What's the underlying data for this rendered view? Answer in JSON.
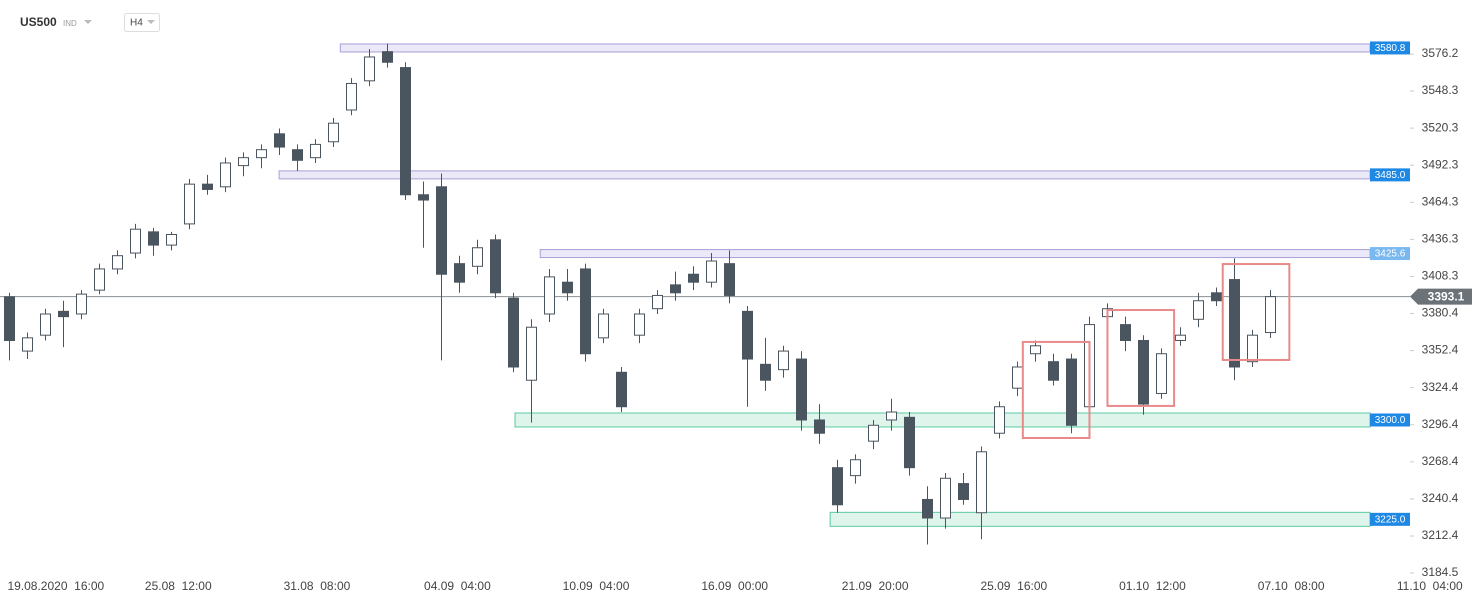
{
  "header": {
    "symbol": "US500",
    "market": "IND",
    "interval": "H4"
  },
  "chart_data": {
    "type": "candlestick",
    "open": [
      3393,
      3352,
      3364,
      3382,
      3380,
      3398,
      3414,
      3426,
      3442,
      3432,
      3448,
      3478,
      3476,
      3492,
      3498,
      3516,
      3504,
      3498,
      3510,
      3534,
      3556,
      3578,
      3566,
      3470,
      3476,
      3418,
      3416,
      3436,
      3392,
      3330,
      3380,
      3404,
      3414,
      3362,
      3336,
      3364,
      3384,
      3402,
      3410,
      3404,
      3418,
      3382,
      3342,
      3338,
      3346,
      3300,
      3264,
      3258,
      3284,
      3300,
      3302,
      3240,
      3226,
      3252,
      3230,
      3290,
      3324,
      3350,
      3344,
      3346,
      3310,
      3378,
      3372,
      3360,
      3320,
      3360,
      3376,
      3396,
      3406,
      3344,
      3366
    ],
    "high": [
      3396,
      3366,
      3384,
      3390,
      3398,
      3418,
      3428,
      3448,
      3445,
      3442,
      3482,
      3485,
      3498,
      3502,
      3508,
      3520,
      3508,
      3512,
      3528,
      3558,
      3580,
      3584,
      3570,
      3480,
      3486,
      3424,
      3436,
      3440,
      3396,
      3376,
      3414,
      3414,
      3418,
      3384,
      3340,
      3384,
      3398,
      3412,
      3416,
      3426,
      3428,
      3386,
      3362,
      3356,
      3352,
      3312,
      3270,
      3274,
      3300,
      3316,
      3306,
      3250,
      3260,
      3260,
      3280,
      3314,
      3344,
      3360,
      3350,
      3350,
      3378,
      3388,
      3378,
      3364,
      3354,
      3370,
      3396,
      3400,
      3422,
      3368,
      3398
    ],
    "low": [
      3345,
      3346,
      3360,
      3355,
      3376,
      3395,
      3410,
      3422,
      3424,
      3428,
      3444,
      3470,
      3472,
      3484,
      3490,
      3500,
      3488,
      3494,
      3506,
      3530,
      3552,
      3566,
      3466,
      3430,
      3345,
      3396,
      3410,
      3392,
      3336,
      3298,
      3374,
      3390,
      3344,
      3358,
      3306,
      3358,
      3380,
      3390,
      3398,
      3400,
      3388,
      3310,
      3322,
      3332,
      3292,
      3282,
      3230,
      3252,
      3278,
      3292,
      3258,
      3206,
      3218,
      3236,
      3210,
      3286,
      3318,
      3344,
      3326,
      3290,
      3304,
      3366,
      3352,
      3304,
      3316,
      3356,
      3370,
      3386,
      3330,
      3340,
      3362
    ],
    "close": [
      3360,
      3362,
      3380,
      3378,
      3395,
      3414,
      3424,
      3444,
      3432,
      3440,
      3478,
      3474,
      3494,
      3498,
      3504,
      3506,
      3496,
      3508,
      3524,
      3554,
      3574,
      3570,
      3470,
      3466,
      3410,
      3404,
      3430,
      3396,
      3340,
      3370,
      3408,
      3396,
      3350,
      3380,
      3310,
      3380,
      3394,
      3396,
      3404,
      3420,
      3394,
      3346,
      3330,
      3352,
      3300,
      3290,
      3236,
      3270,
      3296,
      3306,
      3264,
      3226,
      3256,
      3240,
      3276,
      3310,
      3340,
      3356,
      3330,
      3296,
      3372,
      3384,
      3360,
      3312,
      3350,
      3364,
      3390,
      3390,
      3340,
      3364,
      3393.1
    ],
    "up_color": "#ffffff",
    "down_color": "#4a555f",
    "xlim": [
      -0.5,
      77.8
    ],
    "xticks": [
      {
        "value": 2.6,
        "label": "19.08.2020  16:00"
      },
      {
        "value": 9.4,
        "label": "25.08  12:00"
      },
      {
        "value": 17.1,
        "label": "31.08  08:00"
      },
      {
        "value": 24.9,
        "label": "04.09  04:00"
      },
      {
        "value": 32.6,
        "label": "10.09  04:00"
      },
      {
        "value": 40.3,
        "label": "16.09  00:00"
      },
      {
        "value": 48.1,
        "label": "21.09  20:00"
      },
      {
        "value": 55.8,
        "label": "25.09  16:00"
      },
      {
        "value": 63.5,
        "label": "01.10  12:00"
      },
      {
        "value": 71.2,
        "label": "07.10  08:00"
      },
      {
        "value": 78.9,
        "label": "11.10  04:00"
      }
    ],
    "ylim": [
      3184.5,
      3617
    ],
    "yticks": [
      3576.2,
      3548.3,
      3520.3,
      3492.3,
      3464.3,
      3436.3,
      3408.3,
      3380.4,
      3352.4,
      3324.4,
      3296.4,
      3268.4,
      3240.4,
      3212.4,
      3184.5
    ],
    "levels": [
      {
        "value": 3580.8,
        "label": "3580.8",
        "from": 18.4,
        "color": "#a9a0d8",
        "tag": "#1e88e5"
      },
      {
        "value": 3485,
        "label": "3485.0",
        "from": 15,
        "color": "#a9a0d8",
        "tag": "#1e88e5"
      },
      {
        "value": 3425.6,
        "label": "3425.6",
        "from": 29.5,
        "color": "#a9a0d8",
        "tag": "#7ab8f0"
      },
      {
        "value": 3300,
        "label": "3300.0",
        "from": 28.1,
        "color": "#5cc9a0",
        "tag": "#1e88e5"
      },
      {
        "value": 3225,
        "label": "3225.0",
        "from": 45.6,
        "color": "#5cc9a0",
        "tag": "#1e88e5"
      }
    ],
    "last_price": {
      "value": 3393.1,
      "label": "3393.1"
    },
    "boxes": [
      {
        "x": [
          56.3,
          60.0
        ],
        "y": [
          3358.9,
          3286.4
        ]
      },
      {
        "x": [
          61.0,
          64.7
        ],
        "y": [
          3383.0,
          3310.6
        ]
      },
      {
        "x": [
          67.4,
          71.1
        ],
        "y": [
          3417.7,
          3345.3
        ]
      }
    ],
    "box_color": "#e88a8a"
  }
}
